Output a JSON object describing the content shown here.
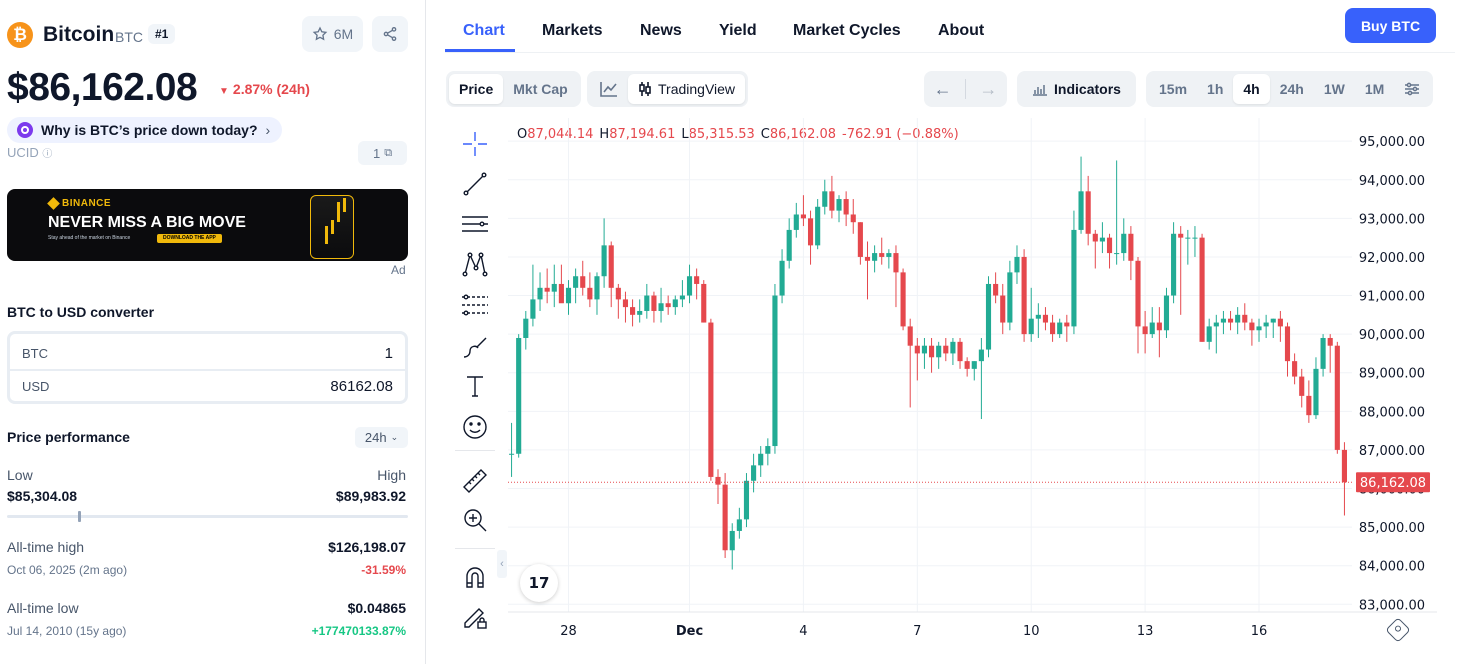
{
  "coin": {
    "logo_glyph": "₿",
    "name": "Bitcoin",
    "symbol": "BTC",
    "rank": "#1",
    "watchlist_count": "6M"
  },
  "price": {
    "value": "$86,162.08",
    "change": "2.87% (24h)",
    "change_color": "#e5484d"
  },
  "why_link": "Why is BTC’s price down today?",
  "ucid": {
    "label": "UCID",
    "value": "1"
  },
  "ad": {
    "brand": "BINANCE",
    "headline": "NEVER MISS A BIG MOVE",
    "sub": "Stay ahead of the market on Binance",
    "cta": "DOWNLOAD THE APP",
    "label": "Ad"
  },
  "converter": {
    "title": "BTC to USD converter",
    "from_symbol": "BTC",
    "from_value": "1",
    "to_symbol": "USD",
    "to_value": "86162.08"
  },
  "performance": {
    "title": "Price performance",
    "period": "24h",
    "low_label": "Low",
    "low_value": "$85,304.08",
    "high_label": "High",
    "high_value": "$89,983.92",
    "position": 0.18
  },
  "ath": {
    "label": "All-time high",
    "value": "$126,198.07",
    "date": "Oct 06, 2025 (2m ago)",
    "pct": "-31.59%"
  },
  "atl": {
    "label": "All-time low",
    "value": "$0.04865",
    "date": "Jul 14, 2010 (15y ago)",
    "pct": "+177470133.87%"
  },
  "tabs": [
    "Chart",
    "Markets",
    "News",
    "Yield",
    "Market Cycles",
    "About"
  ],
  "buy_label": "Buy BTC",
  "toolbar": {
    "price": "Price",
    "mktcap": "Mkt Cap",
    "tradingview": "TradingView",
    "indicators": "Indicators",
    "intervals": [
      "15m",
      "1h",
      "4h",
      "24h",
      "1W",
      "1M"
    ],
    "active_interval": "4h"
  },
  "ohlc": {
    "o_label": "O",
    "o": "87,044.14",
    "h_label": "H",
    "h": "87,194.61",
    "l_label": "L",
    "l": "85,315.53",
    "c_label": "C",
    "c": "86,162.08",
    "change": "-762.91 (−0.88%)"
  },
  "colors": {
    "accent": "#3861fb",
    "up": "#22ab94",
    "down": "#e5484d"
  },
  "chart_data": {
    "type": "candlestick",
    "ylim": [
      82800,
      95600
    ],
    "y_ticks": [
      "95,000.00",
      "94,000.00",
      "93,000.00",
      "92,000.00",
      "91,000.00",
      "90,000.00",
      "89,000.00",
      "88,000.00",
      "87,000.00",
      "86,000.00",
      "85,000.00",
      "84,000.00",
      "83,000.00"
    ],
    "x_labels": [
      "28",
      "Dec",
      "4",
      "7",
      "10",
      "13",
      "16"
    ],
    "last_price": 86162.08,
    "last_price_label": "86,162.08",
    "candles": [
      [
        86900,
        87700,
        86300,
        86900
      ],
      [
        86900,
        90000,
        86800,
        89900
      ],
      [
        89900,
        90600,
        89600,
        90400
      ],
      [
        90400,
        91800,
        90200,
        90900
      ],
      [
        90900,
        91600,
        90600,
        91200
      ],
      [
        91200,
        91700,
        90800,
        91100
      ],
      [
        91100,
        91800,
        90700,
        91300
      ],
      [
        91300,
        91800,
        90900,
        90800
      ],
      [
        90800,
        91400,
        90500,
        91200
      ],
      [
        91200,
        91700,
        90800,
        91500
      ],
      [
        91500,
        91900,
        91000,
        91200
      ],
      [
        91200,
        91600,
        90700,
        90900
      ],
      [
        90900,
        91600,
        90500,
        91500
      ],
      [
        91500,
        93000,
        91200,
        92300
      ],
      [
        92300,
        92400,
        90700,
        91200
      ],
      [
        91200,
        91300,
        90400,
        90900
      ],
      [
        90900,
        91100,
        90300,
        90700
      ],
      [
        90700,
        90900,
        90200,
        90500
      ],
      [
        90500,
        90900,
        90300,
        90600
      ],
      [
        90600,
        91300,
        90400,
        91000
      ],
      [
        91000,
        91100,
        90300,
        90600
      ],
      [
        90600,
        91200,
        90300,
        90800
      ],
      [
        90800,
        91000,
        90500,
        90700
      ],
      [
        90700,
        91000,
        90500,
        90900
      ],
      [
        90900,
        91400,
        90700,
        91000
      ],
      [
        91000,
        91800,
        90800,
        91500
      ],
      [
        91500,
        91700,
        90900,
        91300
      ],
      [
        91300,
        91400,
        90300,
        90300
      ],
      [
        90300,
        90400,
        86200,
        86300
      ],
      [
        86300,
        86500,
        85600,
        86100
      ],
      [
        86100,
        86400,
        84200,
        84400
      ],
      [
        84400,
        85100,
        83900,
        84900
      ],
      [
        84900,
        85500,
        84700,
        85200
      ],
      [
        85200,
        86400,
        85000,
        86200
      ],
      [
        86200,
        86900,
        85900,
        86600
      ],
      [
        86600,
        87100,
        86300,
        86900
      ],
      [
        86900,
        87300,
        86600,
        87100
      ],
      [
        87100,
        91300,
        86900,
        91000
      ],
      [
        91000,
        92200,
        90800,
        91900
      ],
      [
        91900,
        93000,
        91700,
        92700
      ],
      [
        92700,
        93400,
        92500,
        93100
      ],
      [
        93100,
        93600,
        92800,
        93000
      ],
      [
        93000,
        93200,
        91800,
        92300
      ],
      [
        92300,
        93500,
        92200,
        93300
      ],
      [
        93300,
        94000,
        93100,
        93700
      ],
      [
        93700,
        94100,
        93000,
        93200
      ],
      [
        93200,
        93600,
        92900,
        93500
      ],
      [
        93500,
        93700,
        92800,
        93100
      ],
      [
        93100,
        93500,
        92600,
        92900
      ],
      [
        92900,
        92900,
        91800,
        92000
      ],
      [
        92000,
        92400,
        90900,
        91900
      ],
      [
        91900,
        92300,
        91600,
        92100
      ],
      [
        92100,
        92500,
        91800,
        92000
      ],
      [
        92000,
        92200,
        91700,
        92100
      ],
      [
        92100,
        92300,
        90700,
        91600
      ],
      [
        91600,
        91700,
        90100,
        90200
      ],
      [
        90200,
        90400,
        88100,
        89700
      ],
      [
        89700,
        89900,
        88800,
        89500
      ],
      [
        89500,
        89900,
        89100,
        89700
      ],
      [
        89700,
        89900,
        89000,
        89400
      ],
      [
        89400,
        89800,
        89100,
        89700
      ],
      [
        89700,
        89900,
        89300,
        89500
      ],
      [
        89500,
        89900,
        89200,
        89800
      ],
      [
        89800,
        89900,
        89100,
        89300
      ],
      [
        89300,
        89400,
        88900,
        89100
      ],
      [
        89100,
        89300,
        88800,
        89300
      ],
      [
        89300,
        89900,
        87800,
        89600
      ],
      [
        89600,
        91500,
        89400,
        91300
      ],
      [
        91300,
        91600,
        90800,
        91000
      ],
      [
        91000,
        91300,
        90000,
        90300
      ],
      [
        90300,
        91900,
        90100,
        91600
      ],
      [
        91600,
        92300,
        91300,
        92000
      ],
      [
        92000,
        92200,
        89800,
        90000
      ],
      [
        90000,
        91200,
        89800,
        90400
      ],
      [
        90400,
        90800,
        89900,
        90500
      ],
      [
        90500,
        90700,
        90100,
        90300
      ],
      [
        90300,
        90500,
        89800,
        90000
      ],
      [
        90000,
        90400,
        89900,
        90300
      ],
      [
        90300,
        90500,
        89800,
        90200
      ],
      [
        90200,
        93200,
        90000,
        92700
      ],
      [
        92700,
        94600,
        92600,
        93700
      ],
      [
        93700,
        94100,
        92300,
        92600
      ],
      [
        92600,
        92700,
        91700,
        92400
      ],
      [
        92400,
        92900,
        92100,
        92500
      ],
      [
        92500,
        92600,
        91700,
        92100
      ],
      [
        92100,
        94500,
        91800,
        92100
      ],
      [
        92100,
        93000,
        91900,
        92600
      ],
      [
        92600,
        92800,
        91400,
        91900
      ],
      [
        91900,
        92000,
        89500,
        90200
      ],
      [
        90200,
        90600,
        89500,
        90000
      ],
      [
        90000,
        90700,
        89900,
        90300
      ],
      [
        90300,
        90700,
        89400,
        90100
      ],
      [
        90100,
        91200,
        89900,
        91000
      ],
      [
        91000,
        92900,
        90800,
        92600
      ],
      [
        92600,
        92800,
        90500,
        92500
      ],
      [
        92500,
        92700,
        91800,
        92500
      ],
      [
        92500,
        92800,
        92000,
        92500
      ],
      [
        92500,
        92600,
        89800,
        89800
      ],
      [
        89800,
        90400,
        89600,
        90200
      ],
      [
        90200,
        90500,
        89500,
        90300
      ],
      [
        90300,
        90600,
        90000,
        90400
      ],
      [
        90400,
        90600,
        90100,
        90300
      ],
      [
        90300,
        90700,
        90000,
        90500
      ],
      [
        90500,
        90800,
        90100,
        90300
      ],
      [
        90300,
        90400,
        89700,
        90100
      ],
      [
        90100,
        90400,
        89800,
        90200
      ],
      [
        90200,
        90500,
        89900,
        90300
      ],
      [
        90300,
        90400,
        89900,
        90400
      ],
      [
        90400,
        90600,
        89800,
        90200
      ],
      [
        90200,
        90300,
        88900,
        89300
      ],
      [
        89300,
        89500,
        88700,
        88900
      ],
      [
        88900,
        89100,
        88100,
        88400
      ],
      [
        88400,
        88800,
        87700,
        87900
      ],
      [
        87900,
        89400,
        87800,
        89100
      ],
      [
        89100,
        90000,
        88900,
        89900
      ],
      [
        89900,
        90000,
        89000,
        89700
      ],
      [
        89700,
        89800,
        86900,
        87000
      ],
      [
        87000,
        87200,
        85300,
        86162
      ]
    ]
  }
}
